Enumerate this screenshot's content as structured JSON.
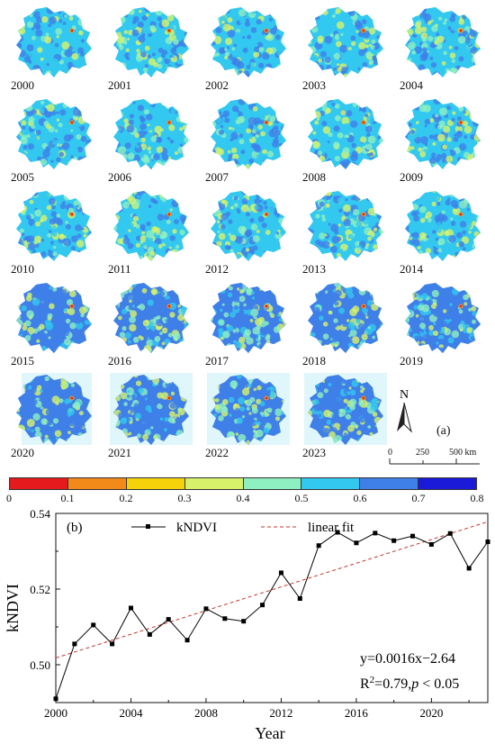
{
  "maps": {
    "years": [
      "2000",
      "2001",
      "2002",
      "2003",
      "2004",
      "2005",
      "2006",
      "2007",
      "2008",
      "2009",
      "2010",
      "2011",
      "2012",
      "2013",
      "2014",
      "2015",
      "2016",
      "2017",
      "2018",
      "2019",
      "2020",
      "2021",
      "2022",
      "2023"
    ],
    "colors": [
      "#e41a1c",
      "#f28a1a",
      "#f6d20a",
      "#d7f26a",
      "#8ef0c0",
      "#33c8ef",
      "#3f7fe8",
      "#1a1ad8"
    ],
    "north_label": "N",
    "panel_label": "(a)",
    "scale_ticks": [
      "0",
      "250",
      "500 km"
    ]
  },
  "colorbar": {
    "ticks": [
      "0",
      "0.1",
      "0.2",
      "0.3",
      "0.4",
      "0.5",
      "0.6",
      "0.7",
      "0.8"
    ],
    "colors": [
      "#e41a1c",
      "#f28a1a",
      "#f6d20a",
      "#d7f26a",
      "#8ef0c0",
      "#33c8ef",
      "#3f7fe8",
      "#1a1ad8"
    ]
  },
  "chart_data": {
    "type": "line",
    "panel_label": "(b)",
    "xlabel": "Year",
    "ylabel": "kNDVI",
    "xlim": [
      2000,
      2023
    ],
    "ylim": [
      0.49,
      0.54
    ],
    "xticks": [
      2000,
      2004,
      2008,
      2012,
      2016,
      2020
    ],
    "yticks": [
      0.5,
      0.52,
      0.54
    ],
    "ytick_labels": [
      "0.50",
      "0.52",
      "0.54"
    ],
    "x": [
      2000,
      2001,
      2002,
      2003,
      2004,
      2005,
      2006,
      2007,
      2008,
      2009,
      2010,
      2011,
      2012,
      2013,
      2014,
      2015,
      2016,
      2017,
      2018,
      2019,
      2020,
      2021,
      2022,
      2023
    ],
    "series": [
      {
        "name": "kNDVI",
        "color": "#000000",
        "values": [
          0.491,
          0.5055,
          0.5105,
          0.5055,
          0.515,
          0.508,
          0.512,
          0.5065,
          0.5148,
          0.5122,
          0.5115,
          0.5158,
          0.5243,
          0.5175,
          0.5315,
          0.535,
          0.5322,
          0.5348,
          0.5328,
          0.534,
          0.5318,
          0.5347,
          0.5255,
          0.5325
        ]
      }
    ],
    "fit": {
      "name": "linear fit",
      "color": "#c0392b",
      "slope": 0.0016,
      "intercept": -2.64,
      "y_start": 0.5018,
      "y_end": 0.5378
    },
    "annotation_eq": "y=0.0016x−2.64",
    "annotation_r2_prefix": "R",
    "annotation_r2_sup": "2",
    "annotation_r2_rest": "=0.79,",
    "annotation_p": "p",
    "annotation_p_rest": " < 0.05",
    "legend_position": "top"
  }
}
